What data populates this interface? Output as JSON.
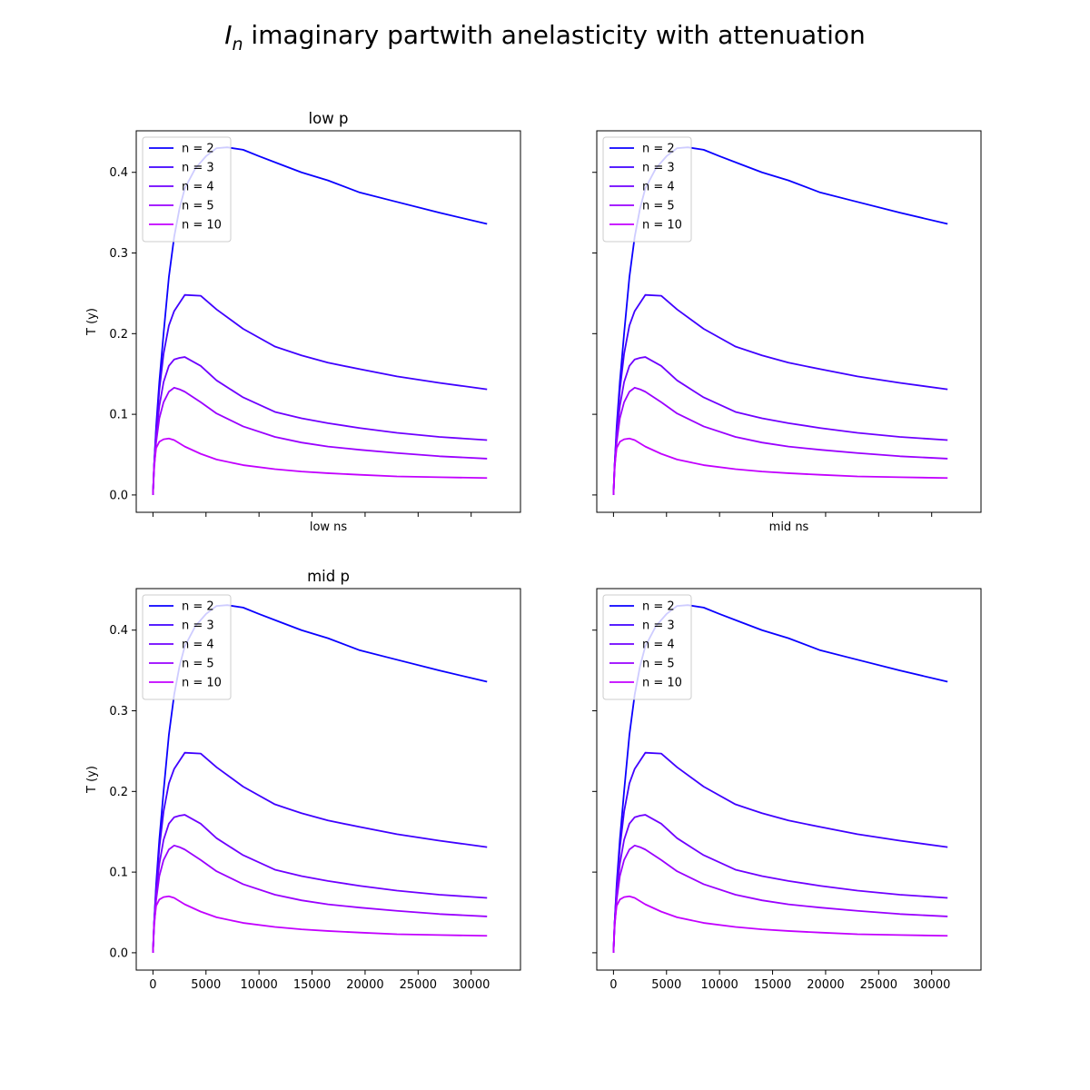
{
  "figure": {
    "title_prefix": "I",
    "title_subscript": "n",
    "title_rest": " imaginary partwith anelasticity with attenuation"
  },
  "chart_data": [
    {
      "type": "line",
      "title": "low p",
      "xlabel": "low ns",
      "ylabel": "T (y)",
      "show_xticklabels": false,
      "show_yticklabels": true,
      "xlim": [
        -1575,
        34650
      ],
      "ylim": [
        -0.0215,
        0.4515
      ],
      "xticks": [
        0,
        5000,
        10000,
        15000,
        20000,
        25000,
        30000
      ],
      "yticks": [
        0.0,
        0.1,
        0.2,
        0.3,
        0.4
      ],
      "legend": "upper left"
    },
    {
      "type": "line",
      "title": "",
      "xlabel": "mid ns",
      "ylabel": "",
      "show_xticklabels": false,
      "show_yticklabels": false,
      "xlim": [
        -1575,
        34650
      ],
      "ylim": [
        -0.0215,
        0.4515
      ],
      "xticks": [
        0,
        5000,
        10000,
        15000,
        20000,
        25000,
        30000
      ],
      "yticks": [
        0.0,
        0.1,
        0.2,
        0.3,
        0.4
      ],
      "legend": "upper left"
    },
    {
      "type": "line",
      "title": "mid p",
      "xlabel": "",
      "ylabel": "T (y)",
      "show_xticklabels": true,
      "show_yticklabels": true,
      "xlim": [
        -1575,
        34650
      ],
      "ylim": [
        -0.0215,
        0.4515
      ],
      "xticks": [
        0,
        5000,
        10000,
        15000,
        20000,
        25000,
        30000
      ],
      "yticks": [
        0.0,
        0.1,
        0.2,
        0.3,
        0.4
      ],
      "legend": "upper left"
    },
    {
      "type": "line",
      "title": "",
      "xlabel": "",
      "ylabel": "",
      "show_xticklabels": true,
      "show_yticklabels": false,
      "xlim": [
        -1575,
        34650
      ],
      "ylim": [
        -0.0215,
        0.4515
      ],
      "xticks": [
        0,
        5000,
        10000,
        15000,
        20000,
        25000,
        30000
      ],
      "yticks": [
        0.0,
        0.1,
        0.2,
        0.3,
        0.4
      ],
      "legend": "upper left"
    }
  ],
  "series": [
    {
      "name": "n = 2",
      "color": "#0a00ff",
      "x": [
        0,
        100,
        300,
        600,
        1000,
        1500,
        2000,
        2500,
        3000,
        4000,
        5000,
        6000,
        7000,
        8500,
        10000,
        12000,
        14000,
        16500,
        19500,
        22500,
        27000,
        31500
      ],
      "y": [
        0.0,
        0.035,
        0.085,
        0.14,
        0.2,
        0.27,
        0.32,
        0.355,
        0.38,
        0.405,
        0.42,
        0.43,
        0.431,
        0.428,
        0.42,
        0.41,
        0.4,
        0.39,
        0.375,
        0.365,
        0.35,
        0.336
      ]
    },
    {
      "name": "n = 3",
      "color": "#3f00ff",
      "x": [
        0,
        100,
        300,
        600,
        1000,
        1500,
        2000,
        2500,
        3000,
        4500,
        6000,
        8500,
        11500,
        14000,
        16500,
        19500,
        23000,
        27000,
        31500
      ],
      "y": [
        0.0,
        0.035,
        0.08,
        0.13,
        0.175,
        0.21,
        0.228,
        0.238,
        0.248,
        0.247,
        0.23,
        0.206,
        0.184,
        0.173,
        0.164,
        0.156,
        0.147,
        0.139,
        0.131
      ]
    },
    {
      "name": "n = 4",
      "color": "#6f00ff",
      "x": [
        0,
        100,
        300,
        600,
        1000,
        1500,
        2000,
        2500,
        3000,
        4500,
        6000,
        8500,
        11500,
        14000,
        16500,
        19500,
        23000,
        27000,
        31500
      ],
      "y": [
        0.0,
        0.035,
        0.075,
        0.11,
        0.14,
        0.16,
        0.168,
        0.17,
        0.171,
        0.16,
        0.142,
        0.121,
        0.103,
        0.095,
        0.089,
        0.083,
        0.077,
        0.072,
        0.068
      ]
    },
    {
      "name": "n = 5",
      "color": "#9a00ff",
      "x": [
        0,
        100,
        300,
        600,
        1000,
        1500,
        2000,
        2500,
        3000,
        4500,
        6000,
        8500,
        11500,
        14000,
        16500,
        19500,
        23000,
        27000,
        31500
      ],
      "y": [
        0.0,
        0.03,
        0.065,
        0.095,
        0.115,
        0.128,
        0.133,
        0.131,
        0.128,
        0.115,
        0.101,
        0.085,
        0.072,
        0.065,
        0.06,
        0.056,
        0.052,
        0.048,
        0.045
      ]
    },
    {
      "name": "n = 10",
      "color": "#c200ff",
      "x": [
        0,
        100,
        300,
        600,
        1000,
        1500,
        2000,
        3000,
        4500,
        6000,
        8500,
        11500,
        14000,
        16500,
        19500,
        23000,
        27000,
        31500
      ],
      "y": [
        0.0,
        0.035,
        0.058,
        0.066,
        0.069,
        0.07,
        0.068,
        0.06,
        0.051,
        0.044,
        0.037,
        0.032,
        0.029,
        0.027,
        0.025,
        0.023,
        0.022,
        0.021
      ]
    }
  ]
}
